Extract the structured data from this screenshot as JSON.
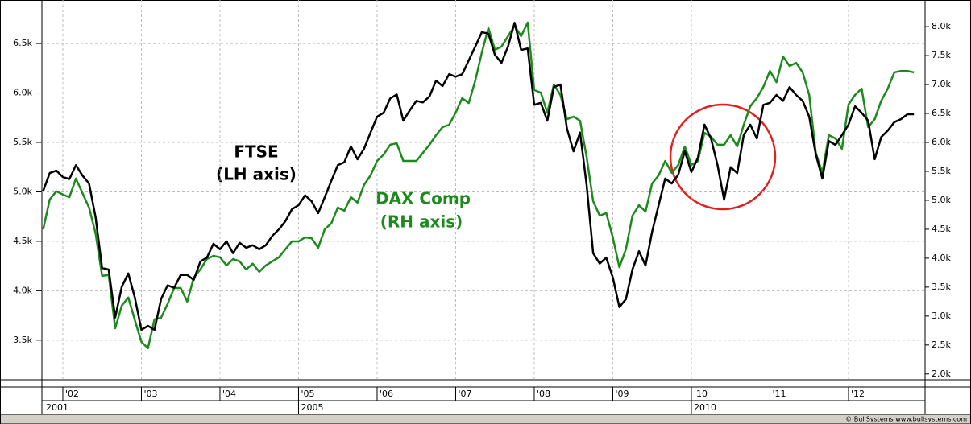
{
  "chart_data": {
    "type": "line",
    "categories": [
      null,
      null,
      null,
      "'02",
      null,
      null,
      null,
      null,
      null,
      null,
      null,
      null,
      null,
      null,
      null,
      "'03",
      null,
      null,
      null,
      null,
      null,
      null,
      null,
      null,
      null,
      null,
      null,
      "'04",
      null,
      null,
      null,
      null,
      null,
      null,
      null,
      null,
      null,
      null,
      null,
      "'05",
      null,
      null,
      null,
      null,
      null,
      null,
      null,
      null,
      null,
      null,
      null,
      "'06",
      null,
      null,
      null,
      null,
      null,
      null,
      null,
      null,
      null,
      null,
      null,
      "'07",
      null,
      null,
      null,
      null,
      null,
      null,
      null,
      null,
      null,
      null,
      null,
      "'08",
      null,
      null,
      null,
      null,
      null,
      null,
      null,
      null,
      null,
      null,
      null,
      "'09",
      null,
      null,
      null,
      null,
      null,
      null,
      null,
      null,
      null,
      null,
      null,
      "'10",
      null,
      null,
      null,
      null,
      null,
      null,
      null,
      null,
      null,
      null,
      null,
      "'11",
      null,
      null,
      null,
      null,
      null,
      null,
      null,
      null,
      null,
      null,
      null,
      "'12",
      null,
      null,
      null,
      null,
      null,
      null,
      null,
      null,
      null,
      null
    ],
    "category_groups": [
      "2001",
      null,
      null,
      null,
      null,
      null,
      null,
      null,
      null,
      null,
      null,
      null,
      null,
      null,
      null,
      null,
      null,
      null,
      null,
      null,
      null,
      null,
      null,
      null,
      null,
      null,
      null,
      null,
      null,
      null,
      null,
      null,
      null,
      null,
      null,
      null,
      null,
      null,
      null,
      "2005",
      null,
      null,
      null,
      null,
      null,
      null,
      null,
      null,
      null,
      null,
      null,
      null,
      null,
      null,
      null,
      null,
      null,
      null,
      null,
      null,
      null,
      null,
      null,
      null,
      null,
      null,
      null,
      null,
      null,
      null,
      null,
      null,
      null,
      null,
      null,
      null,
      null,
      null,
      null,
      null,
      null,
      null,
      null,
      null,
      null,
      null,
      null,
      null,
      null,
      null,
      null,
      null,
      null,
      null,
      null,
      null,
      null,
      null,
      null,
      "2010",
      null,
      null,
      null,
      null,
      null,
      null,
      null,
      null,
      null,
      null,
      null,
      null,
      null,
      null,
      null,
      null,
      null,
      null,
      null,
      null,
      null,
      null,
      null,
      null,
      null,
      null,
      null,
      null,
      null,
      null,
      null,
      null,
      null,
      null
    ],
    "series": [
      {
        "name": "FTSE",
        "color": "#000000",
        "values": [
          5010,
          5190,
          5215,
          5150,
          5130,
          5270,
          5165,
          5085,
          4745,
          4230,
          4215,
          3730,
          4040,
          4175,
          3930,
          3605,
          3645,
          3605,
          3915,
          4055,
          4030,
          4160,
          4160,
          4110,
          4295,
          4335,
          4475,
          4420,
          4500,
          4380,
          4485,
          4435,
          4460,
          4420,
          4460,
          4555,
          4620,
          4705,
          4825,
          4865,
          4965,
          4905,
          4785,
          4945,
          5110,
          5270,
          5300,
          5460,
          5330,
          5435,
          5600,
          5760,
          5800,
          5945,
          5985,
          5720,
          5825,
          5920,
          5905,
          5965,
          6125,
          6070,
          6190,
          6165,
          6190,
          6330,
          6470,
          6615,
          6600,
          6385,
          6305,
          6470,
          6710,
          6435,
          6450,
          5880,
          5900,
          5720,
          6060,
          6085,
          5640,
          5410,
          5600,
          5070,
          4380,
          4275,
          4335,
          4135,
          3835,
          3915,
          4215,
          4400,
          4255,
          4595,
          4865,
          5135,
          5085,
          5175,
          5410,
          5200,
          5345,
          5680,
          5540,
          5270,
          4920,
          5250,
          5190,
          5575,
          5680,
          5540,
          5880,
          5900,
          5980,
          5920,
          6060,
          5980,
          5920,
          5760,
          5380,
          5135,
          5515,
          5475,
          5575,
          5680,
          5865,
          5800,
          5720,
          5330,
          5555,
          5620,
          5705,
          5735,
          5785,
          5785
        ]
      },
      {
        "name": "DAX Comp",
        "color": "#1e8a1e",
        "axis": "y2",
        "values": [
          4500,
          5015,
          5155,
          5100,
          5055,
          5375,
          5125,
          4875,
          4430,
          3695,
          3710,
          2790,
          3180,
          3320,
          2930,
          2555,
          2445,
          2945,
          2970,
          3210,
          3485,
          3485,
          3250,
          3665,
          3805,
          3985,
          4040,
          4015,
          3875,
          3985,
          3945,
          3805,
          3905,
          3765,
          3875,
          3945,
          4015,
          4155,
          4290,
          4290,
          4360,
          4345,
          4180,
          4500,
          4600,
          4875,
          4820,
          5055,
          4960,
          5265,
          5430,
          5680,
          5790,
          5960,
          5985,
          5680,
          5680,
          5680,
          5820,
          5960,
          6125,
          6265,
          6305,
          6515,
          6765,
          6680,
          7070,
          7555,
          7975,
          7600,
          7655,
          7835,
          8015,
          7835,
          8070,
          6905,
          6860,
          6515,
          7000,
          6820,
          6400,
          6445,
          6375,
          5750,
          4985,
          4735,
          4780,
          4360,
          3845,
          4155,
          4735,
          4915,
          4805,
          5290,
          5430,
          5680,
          5475,
          5610,
          5930,
          5610,
          5680,
          6165,
          6100,
          5960,
          5960,
          6125,
          5930,
          6305,
          6625,
          6765,
          6960,
          7235,
          7040,
          7485,
          7320,
          7375,
          7210,
          6820,
          5820,
          5475,
          6125,
          6070,
          5890,
          6655,
          6820,
          6930,
          6265,
          6400,
          6720,
          6930,
          7210,
          7235,
          7235,
          7210
        ]
      }
    ],
    "annotations": [
      "(LH axis)",
      "(RH axis)"
    ],
    "ylim": [
      3100,
      6940
    ],
    "yticks": [
      {
        "value": 3500,
        "label": "3.5k"
      },
      {
        "value": 4000,
        "label": "4.0k"
      },
      {
        "value": 4500,
        "label": "4.5k"
      },
      {
        "value": 5000,
        "label": "5.0k"
      },
      {
        "value": 5500,
        "label": "5.5k"
      },
      {
        "value": 6000,
        "label": "6.0k"
      },
      {
        "value": 6500,
        "label": "6.5k"
      }
    ],
    "y2lim": [
      1900,
      8460
    ],
    "y2ticks": [
      {
        "value": 2000,
        "label": "2.0k"
      },
      {
        "value": 2500,
        "label": "2.5k"
      },
      {
        "value": 3000,
        "label": "3.0k"
      },
      {
        "value": 3500,
        "label": "3.5k"
      },
      {
        "value": 4000,
        "label": "4.0k"
      },
      {
        "value": 4500,
        "label": "4.5k"
      },
      {
        "value": 5000,
        "label": "5.0k"
      },
      {
        "value": 5500,
        "label": "5.5k"
      },
      {
        "value": 6000,
        "label": "6.0k"
      },
      {
        "value": 6500,
        "label": "6.5k"
      },
      {
        "value": 7000,
        "label": "7.0k"
      },
      {
        "value": 7500,
        "label": "7.5k"
      },
      {
        "value": 8000,
        "label": "8.0k"
      }
    ],
    "grid": true,
    "source": "© BullSystems www.bullsystems.com"
  }
}
